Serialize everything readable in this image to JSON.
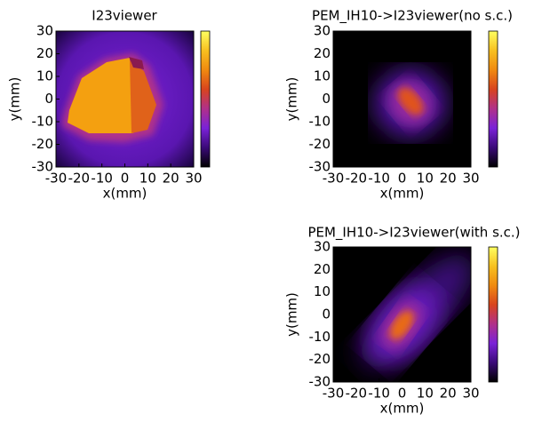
{
  "chart_data": [
    {
      "type": "heatmap",
      "title": "I23viewer",
      "xlabel": "x(mm)",
      "ylabel": "y(mm)",
      "xlim": [
        -30,
        30
      ],
      "ylim": [
        -30,
        30
      ],
      "xticks": [
        -30,
        -20,
        -10,
        0,
        10,
        20,
        30
      ],
      "yticks": [
        -30,
        -20,
        -10,
        0,
        10,
        20,
        30
      ],
      "colormap": [
        "#000000",
        "#3a0a78",
        "#7a22d8",
        "#b0308a",
        "#d8441e",
        "#f08a10",
        "#f7c020",
        "#ffff60"
      ]
    },
    {
      "type": "heatmap",
      "title": "PEM_IH10->I23viewer(no s.c.)",
      "xlabel": "x(mm)",
      "ylabel": "y(mm)",
      "xlim": [
        -30,
        30
      ],
      "ylim": [
        -30,
        30
      ],
      "xticks": [
        -30,
        -20,
        -10,
        0,
        10,
        20,
        30
      ],
      "yticks": [
        -30,
        -20,
        -10,
        0,
        10,
        20,
        30
      ],
      "colormap": [
        "#000000",
        "#3a0a78",
        "#7a22d8",
        "#b0308a",
        "#d8441e",
        "#f08a10",
        "#f7c020",
        "#ffff60"
      ]
    },
    {
      "type": "heatmap",
      "title": "PEM_IH10->I23viewer(with s.c.)",
      "xlabel": "x(mm)",
      "ylabel": "y(mm)",
      "xlim": [
        -30,
        30
      ],
      "ylim": [
        -30,
        30
      ],
      "xticks": [
        -30,
        -20,
        -10,
        0,
        10,
        20,
        30
      ],
      "yticks": [
        -30,
        -20,
        -10,
        0,
        10,
        20,
        30
      ],
      "colormap": [
        "#000000",
        "#3a0a78",
        "#7a22d8",
        "#b0308a",
        "#d8441e",
        "#f08a10",
        "#f7c020",
        "#ffff60"
      ]
    }
  ]
}
